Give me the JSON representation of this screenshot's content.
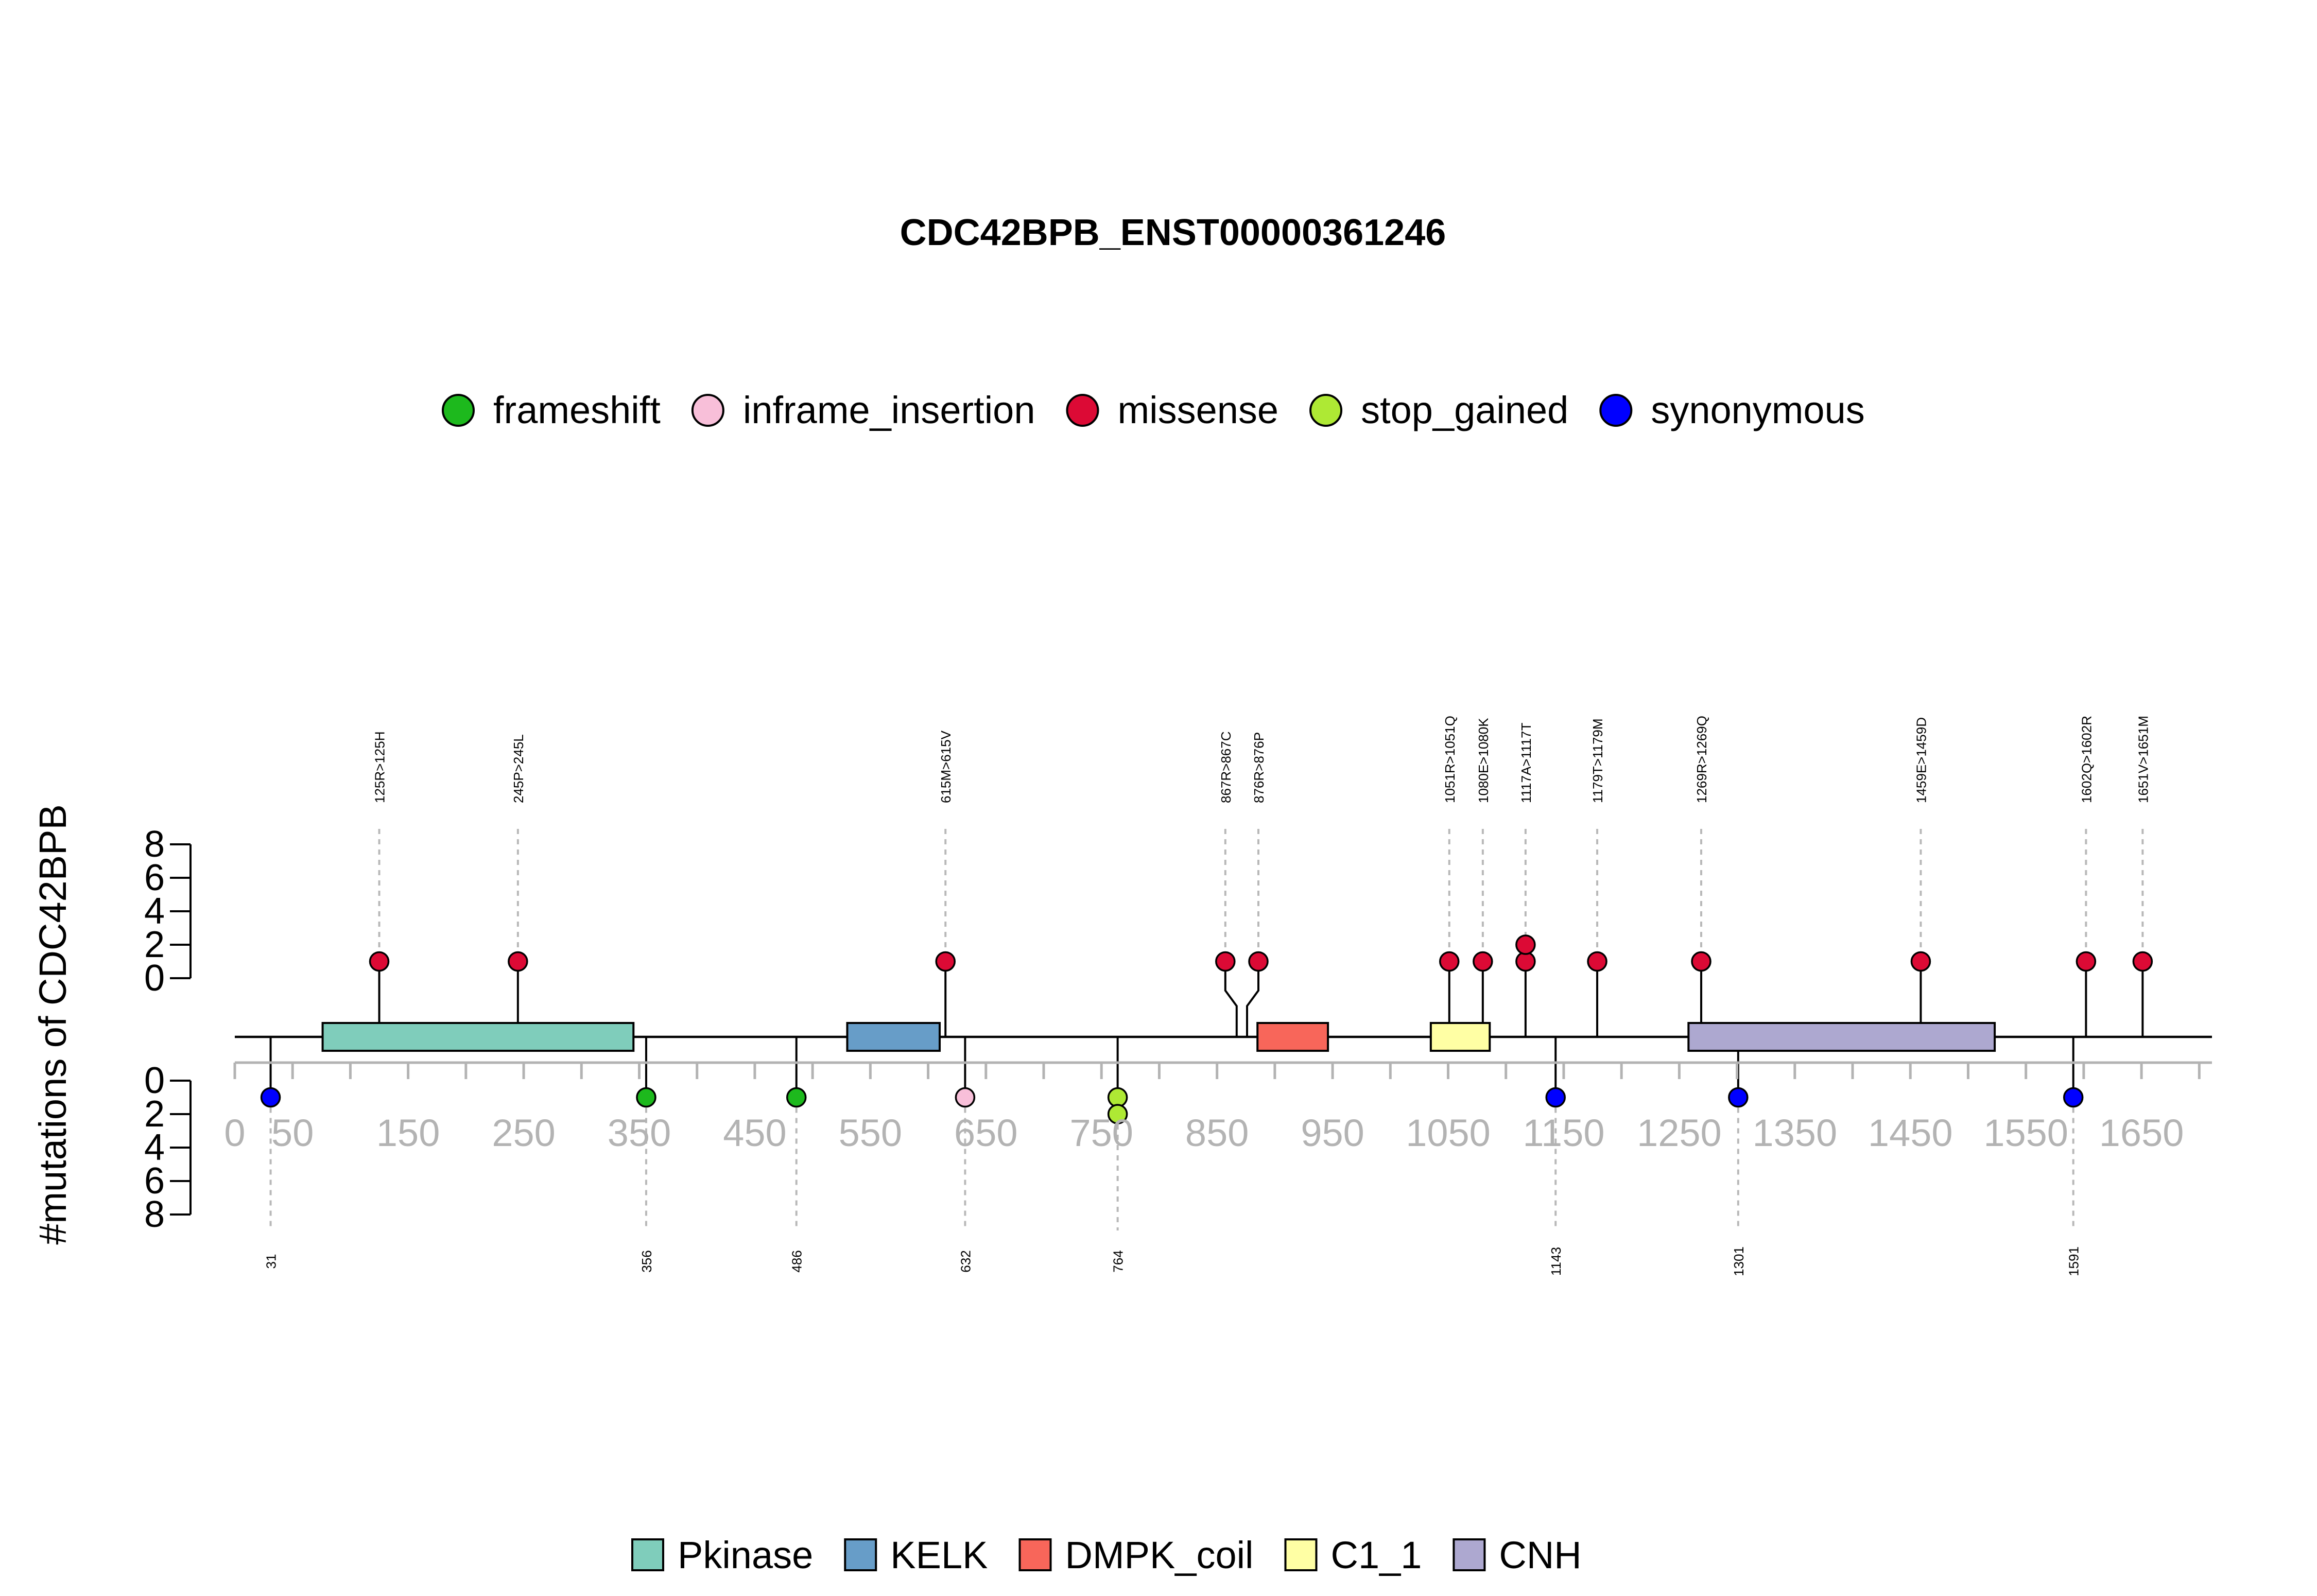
{
  "chart_data": {
    "type": "lollipop",
    "title": "CDC42BPB_ENST00000361246",
    "ylabel": "#mutations of CDC42BPB",
    "protein_length": 1711,
    "xlim": [
      0,
      1711
    ],
    "x_ticks": [
      0,
      50,
      150,
      250,
      350,
      450,
      550,
      650,
      750,
      850,
      950,
      1050,
      1150,
      1250,
      1350,
      1450,
      1550,
      1650
    ],
    "x_tick_labels": [
      "0",
      "50",
      "150",
      "250",
      "350",
      "450",
      "550",
      "650",
      "750",
      "850",
      "950",
      "1050",
      "1150",
      "1250",
      "1350",
      "1450",
      "1550",
      "1650"
    ],
    "y_upper": {
      "ticks": [
        0,
        2,
        4,
        6,
        8
      ],
      "labels": [
        "0",
        "2",
        "4",
        "6",
        "8"
      ]
    },
    "y_lower": {
      "ticks": [
        0,
        2,
        4,
        6,
        8
      ],
      "labels": [
        "0",
        "2",
        "4",
        "6",
        "8"
      ]
    },
    "grid": false,
    "mutation_legend_position": "top-center",
    "mutation_types": [
      {
        "name": "frameshift",
        "color": "#1DB91D"
      },
      {
        "name": "inframe_insertion",
        "color": "#F8BFD9"
      },
      {
        "name": "missense",
        "color": "#DC0A35"
      },
      {
        "name": "stop_gained",
        "color": "#AEE934"
      },
      {
        "name": "synonymous",
        "color": "#0000FF"
      }
    ],
    "domain_legend_position": "bottom-center",
    "domains": [
      {
        "name": "Pkinase",
        "start": 76,
        "end": 345,
        "color": "#7FCDBB"
      },
      {
        "name": "KELK",
        "start": 530,
        "end": 610,
        "color": "#679DC8"
      },
      {
        "name": "DMPK_coil",
        "start": 885,
        "end": 946,
        "color": "#F8665A"
      },
      {
        "name": "C1_1",
        "start": 1035,
        "end": 1086,
        "color": "#FFFFA4"
      },
      {
        "name": "CNH",
        "start": 1258,
        "end": 1523,
        "color": "#ADA8D0"
      }
    ],
    "upper_mutations": [
      {
        "label": "125R>125H",
        "pos": 125,
        "count": 1,
        "type": "missense"
      },
      {
        "label": "245P>245L",
        "pos": 245,
        "count": 1,
        "type": "missense"
      },
      {
        "label": "615M>615V",
        "pos": 615,
        "count": 1,
        "type": "missense"
      },
      {
        "label": "867R>867C",
        "pos": 867,
        "count": 1,
        "type": "missense"
      },
      {
        "label": "876R>876P",
        "pos": 876,
        "count": 1,
        "type": "missense"
      },
      {
        "label": "1051R>1051Q",
        "pos": 1051,
        "count": 1,
        "type": "missense"
      },
      {
        "label": "1080E>1080K",
        "pos": 1080,
        "count": 1,
        "type": "missense"
      },
      {
        "label": "1117A>1117T",
        "pos": 1117,
        "count": 2,
        "type": "missense"
      },
      {
        "label": "1179T>1179M",
        "pos": 1179,
        "count": 1,
        "type": "missense"
      },
      {
        "label": "1269R>1269Q",
        "pos": 1269,
        "count": 1,
        "type": "missense"
      },
      {
        "label": "1459E>1459D",
        "pos": 1459,
        "count": 1,
        "type": "missense"
      },
      {
        "label": "1602Q>1602R",
        "pos": 1602,
        "count": 1,
        "type": "missense"
      },
      {
        "label": "1651V>1651M",
        "pos": 1651,
        "count": 1,
        "type": "missense"
      }
    ],
    "lower_mutations": [
      {
        "label": "31",
        "pos": 31,
        "count": 1,
        "type": "synonymous"
      },
      {
        "label": "356",
        "pos": 356,
        "count": 1,
        "type": "frameshift"
      },
      {
        "label": "486",
        "pos": 486,
        "count": 1,
        "type": "frameshift"
      },
      {
        "label": "632",
        "pos": 632,
        "count": 1,
        "type": "inframe_insertion"
      },
      {
        "label": "764",
        "pos": 764,
        "count": 2,
        "type": "stop_gained"
      },
      {
        "label": "1143",
        "pos": 1143,
        "count": 1,
        "type": "synonymous"
      },
      {
        "label": "1301",
        "pos": 1301,
        "count": 1,
        "type": "synonymous"
      },
      {
        "label": "1591",
        "pos": 1591,
        "count": 1,
        "type": "synonymous"
      }
    ]
  }
}
